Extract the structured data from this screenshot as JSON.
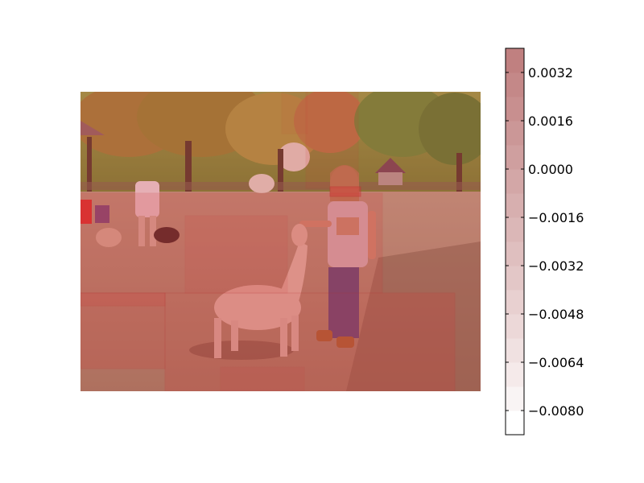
{
  "image": {
    "subject": "photo-scene",
    "overlay_color": "#d23c3c"
  },
  "colorbar": {
    "colors": {
      "low": "#ffffff",
      "high": "#c08080"
    },
    "ticks": [
      {
        "value": 0.0032,
        "label": "0.0032"
      },
      {
        "value": 0.0016,
        "label": "0.0016"
      },
      {
        "value": 0.0,
        "label": "0.0000"
      },
      {
        "value": -0.0016,
        "label": "−0.0016"
      },
      {
        "value": -0.0032,
        "label": "−0.0032"
      },
      {
        "value": -0.0048,
        "label": "−0.0048"
      },
      {
        "value": -0.0064,
        "label": "−0.0064"
      },
      {
        "value": -0.008,
        "label": "−0.0080"
      }
    ]
  }
}
